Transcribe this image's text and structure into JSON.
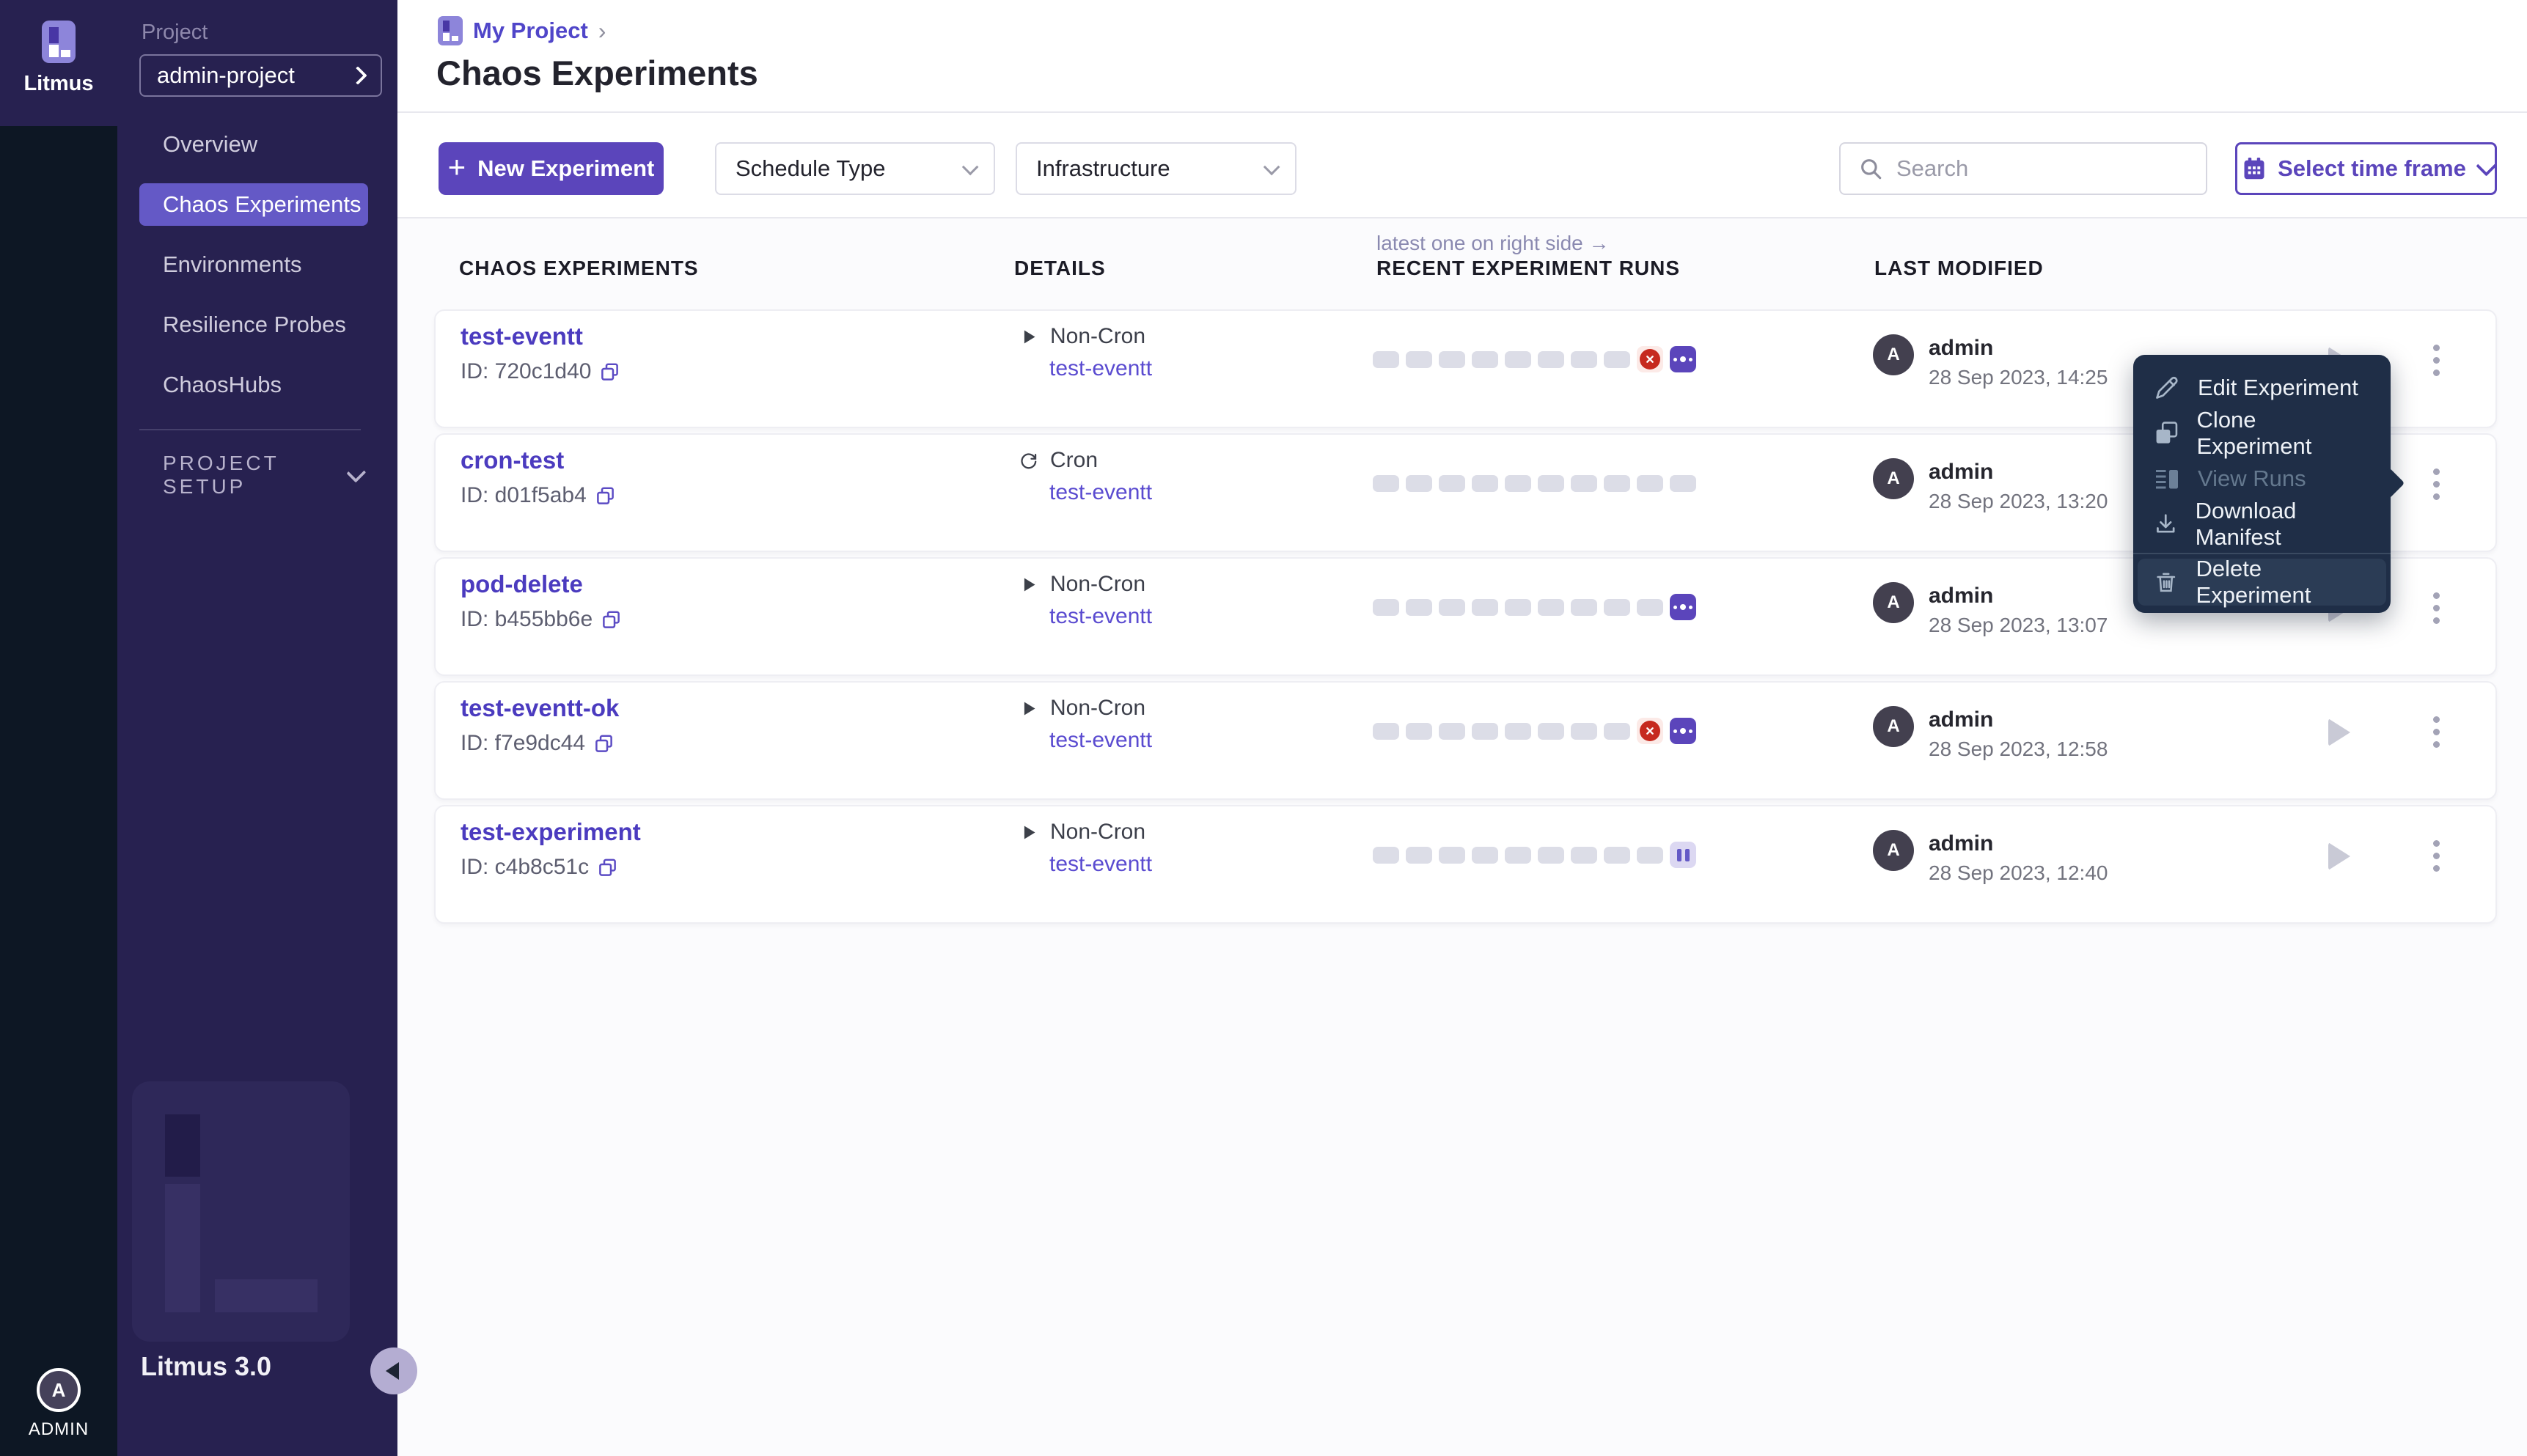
{
  "app": {
    "brand": "Litmus",
    "version": "Litmus 3.0",
    "user_initial": "A",
    "user_label": "ADMIN"
  },
  "sidebar": {
    "project_label": "Project",
    "project_name": "admin-project",
    "items": [
      {
        "label": "Overview",
        "active": false
      },
      {
        "label": "Chaos Experiments",
        "active": true
      },
      {
        "label": "Environments",
        "active": false
      },
      {
        "label": "Resilience Probes",
        "active": false
      },
      {
        "label": "ChaosHubs",
        "active": false
      }
    ],
    "setup_label": "PROJECT SETUP"
  },
  "header": {
    "breadcrumb": "My Project",
    "breadcrumb_sep": "›",
    "title": "Chaos Experiments"
  },
  "toolbar": {
    "plus": "+",
    "new_experiment": "New Experiment",
    "schedule_type": "Schedule Type",
    "infrastructure": "Infrastructure",
    "search_placeholder": "Search",
    "time_frame": "Select time frame"
  },
  "table": {
    "headers": [
      "CHAOS EXPERIMENTS",
      "DETAILS",
      "RECENT EXPERIMENT RUNS",
      "LAST MODIFIED"
    ],
    "runs_note": "latest one on right side →",
    "rows": [
      {
        "name": "test-eventt",
        "id_label": "ID: 720c1d40",
        "schedule": "Non-Cron",
        "schedule_icon": "play-icon",
        "infra": "test-eventt",
        "runs": [
          "empty",
          "empty",
          "empty",
          "empty",
          "empty",
          "empty",
          "empty",
          "empty",
          "failed",
          "running"
        ],
        "user": "admin",
        "date": "28 Sep 2023, 14:25"
      },
      {
        "name": "cron-test",
        "id_label": "ID: d01f5ab4",
        "schedule": "Cron",
        "schedule_icon": "cron-icon",
        "infra": "test-eventt",
        "runs": [
          "empty",
          "empty",
          "empty",
          "empty",
          "empty",
          "empty",
          "empty",
          "empty",
          "empty",
          "empty"
        ],
        "user": "admin",
        "date": "28 Sep 2023, 13:20"
      },
      {
        "name": "pod-delete",
        "id_label": "ID: b455bb6e",
        "schedule": "Non-Cron",
        "schedule_icon": "play-icon",
        "infra": "test-eventt",
        "runs": [
          "empty",
          "empty",
          "empty",
          "empty",
          "empty",
          "empty",
          "empty",
          "empty",
          "empty",
          "running"
        ],
        "user": "admin",
        "date": "28 Sep 2023, 13:07"
      },
      {
        "name": "test-eventt-ok",
        "id_label": "ID: f7e9dc44",
        "schedule": "Non-Cron",
        "schedule_icon": "play-icon",
        "infra": "test-eventt",
        "runs": [
          "empty",
          "empty",
          "empty",
          "empty",
          "empty",
          "empty",
          "empty",
          "empty",
          "failed",
          "running"
        ],
        "user": "admin",
        "date": "28 Sep 2023, 12:58"
      },
      {
        "name": "test-experiment",
        "id_label": "ID: c4b8c51c",
        "schedule": "Non-Cron",
        "schedule_icon": "play-icon",
        "infra": "test-eventt",
        "runs": [
          "empty",
          "empty",
          "empty",
          "empty",
          "empty",
          "empty",
          "empty",
          "empty",
          "empty",
          "paused"
        ],
        "user": "admin",
        "date": "28 Sep 2023, 12:40"
      }
    ]
  },
  "menu": {
    "items": [
      {
        "label": "Edit Experiment",
        "icon": "pencil-icon",
        "enabled": true,
        "highlighted": false
      },
      {
        "label": "Clone Experiment",
        "icon": "clone-icon",
        "enabled": true,
        "highlighted": false
      },
      {
        "label": "View Runs",
        "icon": "runs-icon",
        "enabled": false,
        "highlighted": false
      },
      {
        "label": "Download Manifest",
        "icon": "download-icon",
        "enabled": true,
        "highlighted": false
      },
      {
        "label": "Delete Experiment",
        "icon": "trash-icon",
        "enabled": true,
        "highlighted": true
      }
    ]
  },
  "colors": {
    "primary": "#5b45bb",
    "active_nav": "#6459c6",
    "failed_red": "#c62a1f",
    "paused_bg": "#dcd8f2",
    "menu_bg": "#1f2e47",
    "sidebar_bg": "#272150",
    "rail_bg": "#0d1724"
  }
}
